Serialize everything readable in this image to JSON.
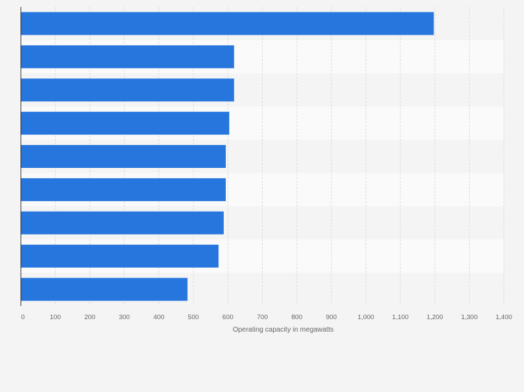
{
  "chart_data": {
    "type": "bar",
    "orientation": "horizontal",
    "categories": [
      "",
      "",
      "",
      "",
      "",
      "",
      "",
      "",
      ""
    ],
    "values": [
      1197,
      618,
      618,
      604,
      594,
      594,
      588,
      573,
      483
    ],
    "title": "",
    "xlabel": "Operating capacity in megawatts",
    "ylabel": "",
    "xlim": [
      0,
      1400
    ],
    "ticks": [
      0,
      100,
      200,
      300,
      400,
      500,
      600,
      700,
      800,
      900,
      1000,
      1100,
      1200,
      1300,
      1400
    ],
    "tick_labels": [
      "0",
      "100",
      "200",
      "300",
      "400",
      "500",
      "600",
      "700",
      "800",
      "900",
      "1,000",
      "1,100",
      "1,200",
      "1,300",
      "1,400"
    ],
    "grid": true,
    "legend": "none",
    "bar_color": "#2776de",
    "band_colors": [
      "#f4f4f4",
      "#fafafa"
    ]
  }
}
